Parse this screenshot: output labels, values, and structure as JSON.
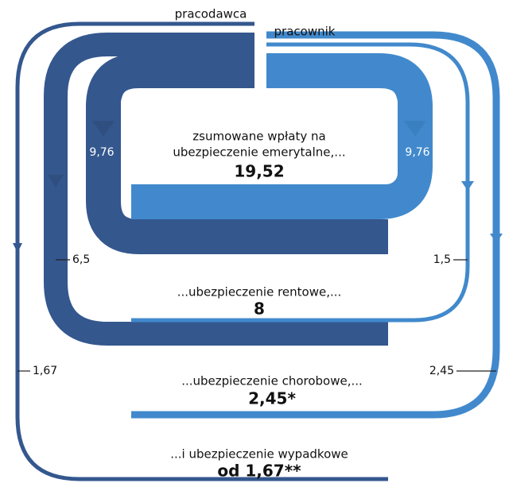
{
  "labels": {
    "employer": "pracodawca",
    "employee": "pracownik"
  },
  "contributions": [
    {
      "name_lines": [
        "zsumowane wpłaty na",
        "ubezpieczenie emerytalne,..."
      ],
      "total": "19,52",
      "employer": "9,76",
      "employee": "9,76"
    },
    {
      "name_lines": [
        "...ubezpieczenie rentowe,..."
      ],
      "total": "8",
      "employer": "6,5",
      "employee": "1,5"
    },
    {
      "name_lines": [
        "...ubezpieczenie chorobowe,..."
      ],
      "total": "2,45*",
      "employee": "2,45"
    },
    {
      "name_lines": [
        "...i ubezpieczenie wypadkowe"
      ],
      "total": "od 1,67**",
      "employer": "1,67"
    }
  ]
}
